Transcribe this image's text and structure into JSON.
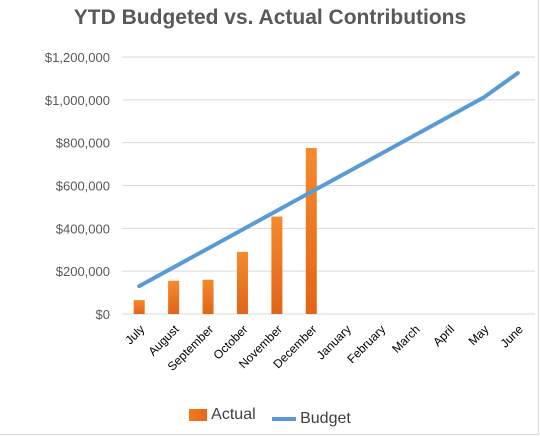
{
  "chart_data": {
    "type": "bar",
    "title": "YTD Budgeted vs. Actual Contributions",
    "xlabel": "",
    "ylabel": "",
    "categories": [
      "July",
      "August",
      "September",
      "October",
      "November",
      "December",
      "January",
      "February",
      "March",
      "April",
      "May",
      "June"
    ],
    "ylim": [
      0,
      1200000
    ],
    "yticks": [
      "$0",
      "$200,000",
      "$400,000",
      "$600,000",
      "$800,000",
      "$1,000,000",
      "$1,200,000"
    ],
    "grid": true,
    "legend_position": "bottom",
    "series": [
      {
        "name": "Actual",
        "type": "bar",
        "color": "#ed7d31",
        "values": [
          65000,
          155000,
          160000,
          290000,
          455000,
          775000,
          null,
          null,
          null,
          null,
          null,
          null
        ]
      },
      {
        "name": "Budget",
        "type": "line",
        "color": "#5b9bd5",
        "values": [
          130000,
          218000,
          306000,
          394000,
          482000,
          570000,
          658000,
          746000,
          834000,
          922000,
          1010000,
          1125000
        ]
      }
    ]
  }
}
